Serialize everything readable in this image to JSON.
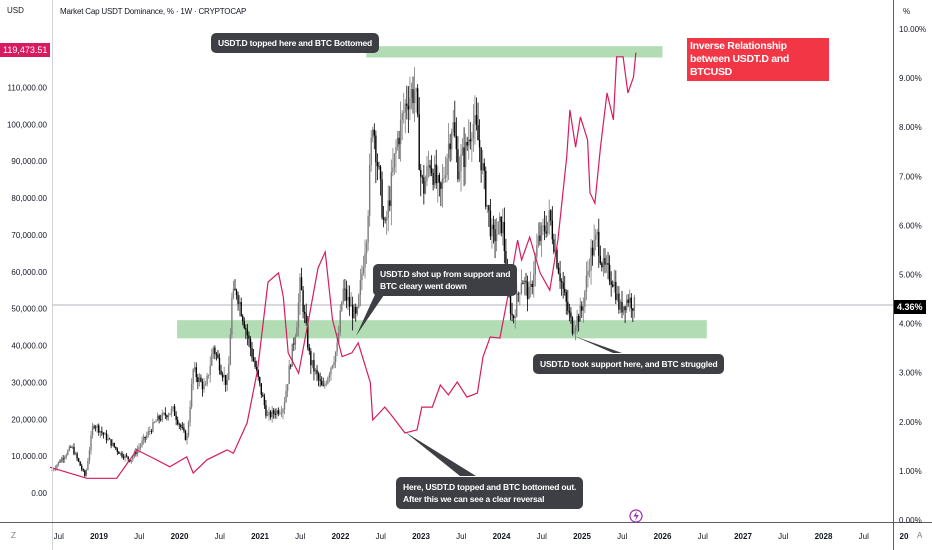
{
  "header": {
    "left_unit": "USD",
    "right_unit": "%",
    "title": "Market Cap USDT Dominance, % · 1W · CRYPTOCAP",
    "timezone_btn": "Z",
    "auto_btn": "A"
  },
  "price_tags": {
    "btc_last": "119,473.51",
    "usdt_last": "4.36%",
    "btc_color": "#d81b60",
    "usdt_tag_color": "#000000"
  },
  "annotations": {
    "inverse_label": "Inverse Relationship between USDT.D and BTCUSD",
    "callout_top": "USDT.D topped here and BTC Bottomed",
    "callout_shot_up": "USDT.D shot up from support and\nBTC cleary went down",
    "callout_support": "USDT.D took support here, and BTC struggled",
    "callout_reversal": "Here, USDT.D topped and BTC bottomed out.\nAfter this we can see a clear reversal"
  },
  "chart_data": {
    "type": "line",
    "title": "Market Cap USDT Dominance, % · 1W · CRYPTOCAP",
    "x_range": [
      2018.3,
      2029.0
    ],
    "left_axis": {
      "label": "USD",
      "range": [
        0,
        133700
      ],
      "ticks": [
        "0.00",
        "10,000.00",
        "20,000.00",
        "30,000.00",
        "40,000.00",
        "50,000.00",
        "60,000.00",
        "70,000.00",
        "80,000.00",
        "90,000.00",
        "100,000.00",
        "110,000.00"
      ],
      "tick_values": [
        0,
        10000,
        20000,
        30000,
        40000,
        50000,
        60000,
        70000,
        80000,
        90000,
        100000,
        110000
      ]
    },
    "right_axis": {
      "label": "%",
      "range": [
        0,
        10.6
      ],
      "ticks": [
        "0.00%",
        "1.00%",
        "2.00%",
        "3.00%",
        "4.00%",
        "5.00%",
        "6.00%",
        "7.00%",
        "8.00%",
        "9.00%",
        "10.00%"
      ],
      "tick_values": [
        0,
        1,
        2,
        3,
        4,
        5,
        6,
        7,
        8,
        9,
        10
      ]
    },
    "time_axis": {
      "labels": [
        "Jul",
        "2019",
        "Jul",
        "2020",
        "Jul",
        "2021",
        "Jul",
        "2022",
        "Jul",
        "2023",
        "Jul",
        "2024",
        "Jul",
        "2025",
        "Jul",
        "2026",
        "Jul",
        "2027",
        "Jul",
        "2028",
        "Jul",
        "20"
      ],
      "values": [
        2018.5,
        2019,
        2019.5,
        2020,
        2020.5,
        2021,
        2021.5,
        2022,
        2022.5,
        2023,
        2023.5,
        2024,
        2024.5,
        2025,
        2025.5,
        2026,
        2026.5,
        2027,
        2027.5,
        2028,
        2028.5,
        2029
      ],
      "bold": [
        false,
        true,
        false,
        true,
        false,
        true,
        false,
        true,
        false,
        true,
        false,
        true,
        false,
        true,
        false,
        true,
        false,
        true,
        false,
        true,
        false,
        true
      ]
    },
    "series": [
      {
        "name": "USDT.D (weekly candles, %)",
        "axis": "right",
        "style": "candlestick",
        "t": [
          2018.42,
          2018.66,
          2018.83,
          2018.93,
          2019.26,
          2019.39,
          2019.72,
          2019.92,
          2020.09,
          2020.17,
          2020.32,
          2020.42,
          2020.6,
          2020.65,
          2020.71,
          2020.88,
          2021.09,
          2021.29,
          2021.46,
          2021.5,
          2021.62,
          2021.78,
          2021.96,
          2022.03,
          2022.2,
          2022.33,
          2022.4,
          2022.55,
          2022.7,
          2022.83,
          2022.93,
          2022.99,
          2023.03,
          2023.11,
          2023.24,
          2023.39,
          2023.46,
          2023.55,
          2023.64,
          2023.73,
          2023.8,
          2023.89,
          2024.01,
          2024.08,
          2024.14,
          2024.25,
          2024.35,
          2024.45,
          2024.6,
          2024.69,
          2024.79,
          2024.88,
          2025.0,
          2025.1,
          2025.19,
          2025.26,
          2025.39,
          2025.47,
          2025.57,
          2025.66
        ],
        "values": [
          1.02,
          1.49,
          0.88,
          1.98,
          1.36,
          1.22,
          2.04,
          2.24,
          1.63,
          3.05,
          2.65,
          3.52,
          2.71,
          4.48,
          4.68,
          3.52,
          2.1,
          2.3,
          4.07,
          4.83,
          3.26,
          2.65,
          3.52,
          4.68,
          4.07,
          5.97,
          8.21,
          5.85,
          7.68,
          8.62,
          8.76,
          7.07,
          6.72,
          7.33,
          6.58,
          8.15,
          7.19,
          7.47,
          8.15,
          7.6,
          6.66,
          5.7,
          6.07,
          4.62,
          4.07,
          4.95,
          4.54,
          5.64,
          6.17,
          5.3,
          4.48,
          3.93,
          4.28,
          5.36,
          5.76,
          5.15,
          4.89,
          4.28,
          4.52,
          4.36
        ],
        "up_color": "#7b7b7b",
        "down_color": "#000000"
      },
      {
        "name": "BTCUSD",
        "axis": "left",
        "style": "line",
        "color": "#d81b60",
        "t": [
          2018.39,
          2018.85,
          2019.22,
          2019.47,
          2019.67,
          2019.88,
          2020.09,
          2020.17,
          2020.34,
          2020.59,
          2020.67,
          2020.84,
          2020.97,
          2021.1,
          2021.23,
          2021.29,
          2021.35,
          2021.48,
          2021.61,
          2021.72,
          2021.81,
          2021.9,
          2022.02,
          2022.14,
          2022.22,
          2022.37,
          2022.4,
          2022.55,
          2022.65,
          2022.8,
          2022.95,
          2023.01,
          2023.14,
          2023.24,
          2023.34,
          2023.45,
          2023.57,
          2023.7,
          2023.77,
          2023.86,
          2023.98,
          2024.07,
          2024.2,
          2024.25,
          2024.35,
          2024.48,
          2024.6,
          2024.7,
          2024.81,
          2024.85,
          2024.92,
          2024.98,
          2025.07,
          2025.1,
          2025.16,
          2025.23,
          2025.31,
          2025.39,
          2025.43,
          2025.51,
          2025.57,
          2025.64,
          2025.67
        ],
        "values": [
          7000,
          4000,
          4000,
          11700,
          9500,
          7100,
          9800,
          5400,
          9000,
          11700,
          10800,
          19000,
          33400,
          57200,
          59700,
          53200,
          38000,
          32500,
          47700,
          61000,
          65400,
          47000,
          37000,
          38000,
          40700,
          30000,
          19800,
          23300,
          20600,
          16300,
          17100,
          23300,
          23300,
          29300,
          26600,
          30100,
          26000,
          27100,
          36900,
          42300,
          42000,
          52300,
          68600,
          63200,
          69400,
          59700,
          55000,
          68600,
          91100,
          103900,
          93800,
          102000,
          95700,
          81400,
          78600,
          93800,
          108500,
          101200,
          118300,
          118300,
          108500,
          112800,
          119473.51
        ]
      }
    ],
    "zones": [
      {
        "name": "top-zone",
        "axis": "right",
        "t": [
          2022.32,
          2026.0
        ],
        "range": [
          9.42,
          9.65
        ],
        "color": "#a5d6a7"
      },
      {
        "name": "support-zone",
        "axis": "right",
        "t": [
          2019.97,
          2026.55
        ],
        "range": [
          3.7,
          4.07
        ],
        "color": "#a5d6a7"
      }
    ],
    "current_value_line": 4.36,
    "grid": false
  }
}
